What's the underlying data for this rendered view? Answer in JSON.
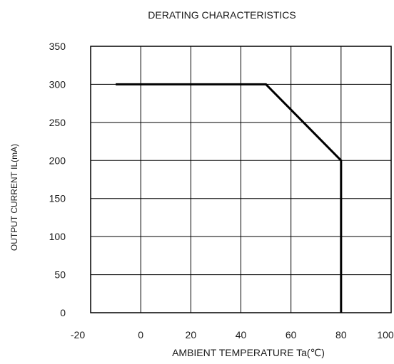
{
  "chart_data": {
    "type": "line",
    "title": "DERATING CHARACTERISTICS",
    "xlabel": "AMBIENT TEMPERATURE Ta(℃)",
    "ylabel": "OUTPUT CURRENT IL(mA)",
    "xlim": [
      -20,
      100
    ],
    "ylim": [
      0,
      350
    ],
    "xticks": [
      -20,
      0,
      20,
      40,
      60,
      80,
      100
    ],
    "yticks": [
      0,
      50,
      100,
      150,
      200,
      250,
      300,
      350
    ],
    "grid": true,
    "series": [
      {
        "x": [
          -10,
          50,
          80,
          80
        ],
        "y": [
          300,
          300,
          200,
          0
        ],
        "color": "#000000"
      }
    ]
  }
}
